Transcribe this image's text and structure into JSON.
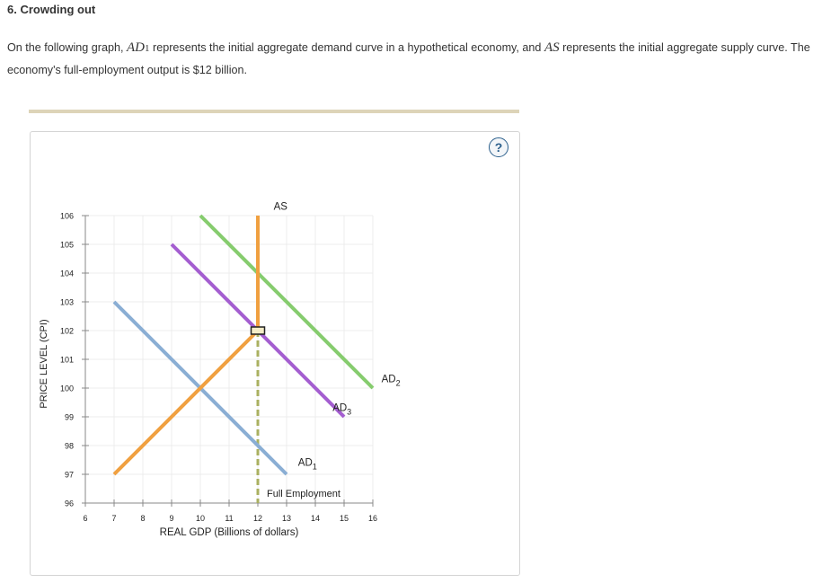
{
  "question": {
    "title": "6. Crowding out",
    "intro_1": "On the following graph, ",
    "ad_symbol": "AD",
    "ad_sub": "1",
    "intro_2": " represents the initial aggregate demand curve in a hypothetical economy, and ",
    "as_symbol": "AS",
    "intro_3": " represents the initial aggregate supply curve. The economy's full-employment output is $12 billion."
  },
  "help": {
    "label": "?"
  },
  "chart_data": {
    "type": "line",
    "xlabel": "REAL GDP (Billions of dollars)",
    "ylabel": "PRICE LEVEL (CPI)",
    "xlim": [
      6,
      16
    ],
    "ylim": [
      96,
      106
    ],
    "x_ticks": [
      6,
      7,
      8,
      9,
      10,
      11,
      12,
      13,
      14,
      15,
      16
    ],
    "y_ticks": [
      96,
      97,
      98,
      99,
      100,
      101,
      102,
      103,
      104,
      105,
      106
    ],
    "grid": true,
    "series": [
      {
        "name": "AD",
        "sub": "1",
        "color": "#8aaed4",
        "points": [
          [
            7,
            103
          ],
          [
            13,
            97
          ]
        ],
        "label_at": [
          13.4,
          97.3
        ]
      },
      {
        "name": "AD",
        "sub": "3",
        "color": "#a45ed0",
        "points": [
          [
            9,
            105
          ],
          [
            15,
            99
          ]
        ],
        "label_at": [
          14.6,
          99.2
        ]
      },
      {
        "name": "AD",
        "sub": "2",
        "color": "#86cc6e",
        "points": [
          [
            10,
            106
          ],
          [
            16,
            100
          ]
        ],
        "label_at": [
          16.3,
          100.2
        ]
      },
      {
        "name": "AS",
        "color": "#f0a040",
        "points": [
          [
            7,
            97
          ],
          [
            12,
            102
          ],
          [
            12,
            106
          ]
        ],
        "label_at": [
          12.55,
          106.2
        ]
      }
    ],
    "full_employment": {
      "label": "Full Employment",
      "x": 12,
      "color": "#aab060"
    },
    "marker": {
      "x": 12,
      "y": 102
    }
  }
}
